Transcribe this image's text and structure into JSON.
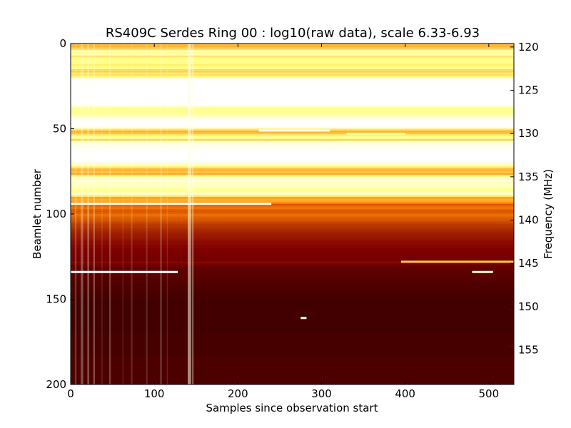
{
  "chart_data": {
    "type": "heatmap",
    "title": "RS409C Serdes Ring 00 : log10(raw data), scale 6.33-6.93",
    "xlabel": "Samples since observation start",
    "ylabel": "Beamlet number",
    "y2label": "Frequency (MHz)",
    "xlim": [
      0,
      530
    ],
    "ylim": [
      200,
      0
    ],
    "y2lim": [
      159.0,
      119.6
    ],
    "x_ticks": [
      0,
      100,
      200,
      300,
      400,
      500
    ],
    "y_ticks": [
      0,
      50,
      100,
      150,
      200
    ],
    "y2_ticks": [
      120,
      125,
      130,
      135,
      140,
      145,
      150,
      155
    ],
    "colormap": "afmhot",
    "color_scale": [
      6.33,
      6.93
    ],
    "row_levels": [
      0.62,
      0.6,
      0.64,
      0.7,
      0.92,
      0.78,
      0.88,
      0.7,
      0.74,
      0.8,
      0.78,
      0.76,
      0.72,
      0.74,
      0.8,
      0.68,
      0.66,
      0.72,
      0.7,
      0.74,
      0.95,
      0.98,
      1.0,
      1.0,
      1.0,
      1.0,
      1.0,
      1.0,
      1.0,
      1.0,
      1.0,
      1.0,
      1.0,
      1.0,
      1.0,
      0.98,
      0.97,
      0.82,
      0.76,
      0.8,
      0.78,
      0.82,
      0.9,
      0.92,
      0.96,
      0.98,
      1.0,
      1.0,
      0.98,
      0.9,
      0.7,
      0.6,
      0.62,
      0.7,
      0.76,
      0.8,
      0.66,
      0.88,
      0.94,
      0.98,
      0.92,
      0.98,
      1.0,
      1.0,
      1.0,
      1.0,
      1.0,
      1.0,
      1.0,
      0.96,
      0.9,
      0.86,
      0.72,
      0.62,
      0.6,
      0.64,
      0.58,
      0.72,
      0.84,
      0.9,
      0.92,
      0.88,
      0.9,
      0.86,
      0.84,
      0.8,
      0.78,
      0.82,
      0.84,
      0.7,
      0.56,
      0.6,
      0.58,
      0.52,
      0.42,
      0.46,
      0.48,
      0.44,
      0.42,
      0.44,
      0.47,
      0.45,
      0.43,
      0.42,
      0.4,
      0.38,
      0.36,
      0.36,
      0.34,
      0.33,
      0.32,
      0.31,
      0.3,
      0.3,
      0.29,
      0.28,
      0.27,
      0.27,
      0.26,
      0.26,
      0.25,
      0.25,
      0.24,
      0.24,
      0.24,
      0.23,
      0.23,
      0.24,
      0.26,
      0.23,
      0.2,
      0.19,
      0.19,
      0.18,
      0.18,
      0.18,
      0.17,
      0.17,
      0.17,
      0.16,
      0.16,
      0.16,
      0.15,
      0.15,
      0.15,
      0.15,
      0.14,
      0.14,
      0.14,
      0.14,
      0.13,
      0.13,
      0.13,
      0.13,
      0.13,
      0.13,
      0.13,
      0.13,
      0.13,
      0.13,
      0.13,
      0.13,
      0.13,
      0.13,
      0.13,
      0.13,
      0.13,
      0.13,
      0.13,
      0.13,
      0.14,
      0.14,
      0.14,
      0.14,
      0.14,
      0.14,
      0.14,
      0.14,
      0.14,
      0.14,
      0.14,
      0.14,
      0.14,
      0.15,
      0.15,
      0.15,
      0.15,
      0.15,
      0.15,
      0.15,
      0.15,
      0.15,
      0.15,
      0.15,
      0.15,
      0.15,
      0.15,
      0.15,
      0.15,
      0.15
    ],
    "column_features": [
      {
        "x": 5,
        "width": 2,
        "level": 0.22
      },
      {
        "x": 12,
        "width": 3,
        "level": 0.3
      },
      {
        "x": 20,
        "width": 2,
        "level": 0.35
      },
      {
        "x": 27,
        "width": 2,
        "level": 0.3
      },
      {
        "x": 37,
        "width": 1,
        "level": 0.18
      },
      {
        "x": 46,
        "width": 2,
        "level": 0.25
      },
      {
        "x": 62,
        "width": 1,
        "level": 0.15
      },
      {
        "x": 72,
        "width": 2,
        "level": 0.15
      },
      {
        "x": 90,
        "width": 2,
        "level": 0.15
      },
      {
        "x": 107,
        "width": 2,
        "level": 0.22
      },
      {
        "x": 115,
        "width": 1,
        "level": 0.15
      },
      {
        "x": 140,
        "width": 4,
        "level": 0.55
      },
      {
        "x": 145,
        "width": 2,
        "level": 0.35
      }
    ],
    "bright_segments": [
      {
        "x0": 0,
        "x1": 128,
        "y": 134,
        "level": 1.0
      },
      {
        "x0": 0,
        "x1": 240,
        "y": 94,
        "level": 0.95
      },
      {
        "x0": 0,
        "x1": 530,
        "y": 88,
        "level": 0.9
      },
      {
        "x0": 395,
        "x1": 530,
        "y": 128,
        "level": 0.65
      },
      {
        "x0": 480,
        "x1": 505,
        "y": 134,
        "level": 0.9
      },
      {
        "x0": 275,
        "x1": 282,
        "y": 161,
        "level": 0.9
      },
      {
        "x0": 225,
        "x1": 310,
        "y": 51,
        "level": 0.95
      },
      {
        "x0": 330,
        "x1": 400,
        "y": 53,
        "level": 0.8
      }
    ]
  }
}
